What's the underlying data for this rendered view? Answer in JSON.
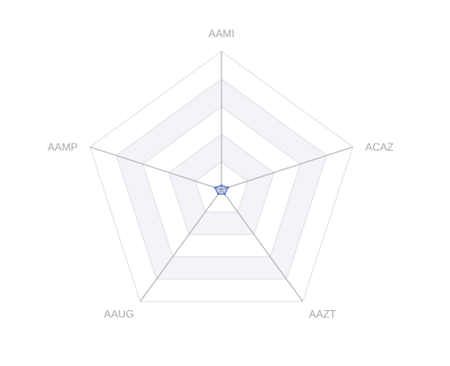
{
  "chart_data": {
    "type": "radar",
    "indicators": [
      {
        "name": "AAMI",
        "max": 100
      },
      {
        "name": "ACAZ",
        "max": 100
      },
      {
        "name": "AAZT",
        "max": 100
      },
      {
        "name": "AAUG",
        "max": 100
      },
      {
        "name": "AAMP",
        "max": 100
      }
    ],
    "series": [
      {
        "values": [
          3,
          5,
          4,
          4,
          5
        ]
      }
    ],
    "split_number": 5,
    "colors": {
      "series_line": "#5470c6",
      "series_fill": "#5470c6",
      "split_band_shaded": "#f3f4f9",
      "split_band_plain": "#ffffff",
      "split_line": "#e0e0e0",
      "axis_line": "#aaaaaa",
      "label": "#a8a8a8"
    }
  }
}
